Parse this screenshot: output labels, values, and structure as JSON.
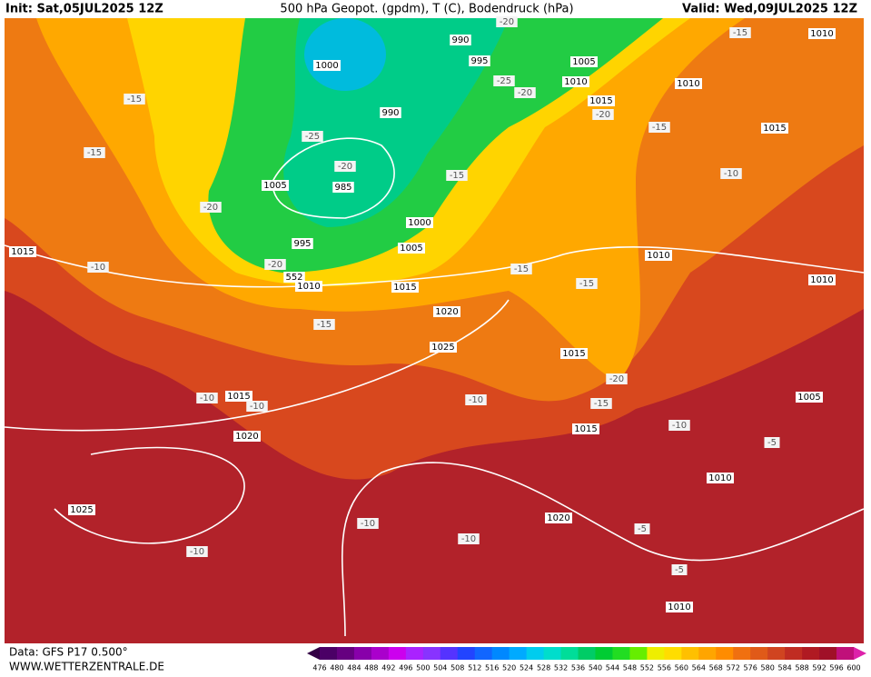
{
  "header": {
    "init": "Init: Sat,05JUL2025 12Z",
    "title": "500 hPa Geopot. (gpdm), T (C), Bodendruck (hPa)",
    "valid": "Valid: Wed,09JUL2025 12Z"
  },
  "footer": {
    "source": "Data: GFS P17 0.500°",
    "site": "WWW.WETTERZENTRALE.DE"
  },
  "colorbar": {
    "labels": [
      "476",
      "480",
      "484",
      "488",
      "492",
      "496",
      "500",
      "504",
      "508",
      "512",
      "516",
      "520",
      "524",
      "528",
      "532",
      "536",
      "540",
      "544",
      "548",
      "552",
      "556",
      "560",
      "564",
      "568",
      "572",
      "576",
      "580",
      "584",
      "588",
      "592",
      "596",
      "600"
    ],
    "colors": [
      "#4b0066",
      "#660080",
      "#8800aa",
      "#aa00cc",
      "#cc00ee",
      "#aa22ff",
      "#8833ff",
      "#5533ff",
      "#2244ff",
      "#1166ff",
      "#0088ff",
      "#00aaff",
      "#00ccee",
      "#00ddcc",
      "#00dd99",
      "#00cc66",
      "#00cc33",
      "#22dd22",
      "#66ee00",
      "#eeee00",
      "#ffdd00",
      "#ffc000",
      "#ffa500",
      "#ff8c00",
      "#f07010",
      "#e05a18",
      "#d04420",
      "#c02c22",
      "#b01a22",
      "#a01028",
      "#c0107a"
    ]
  },
  "map": {
    "pressure_labels": [
      "1010",
      "1000",
      "990",
      "995",
      "1005",
      "1010",
      "1010",
      "1015",
      "990",
      "1015",
      "1005",
      "985",
      "1000",
      "995",
      "1005",
      "1015",
      "1010",
      "1010",
      "1015",
      "1010",
      "1020",
      "1025",
      "1015",
      "1015",
      "1005",
      "1020",
      "1015",
      "1010",
      "1025",
      "1020",
      "1010",
      "552"
    ],
    "temperature_labels": [
      "-15",
      "-15",
      "-25",
      "-20",
      "-20",
      "-20",
      "-25",
      "-20",
      "-20",
      "-15",
      "-15",
      "-10",
      "-15",
      "-20",
      "-10",
      "-15",
      "-15",
      "-15",
      "-20",
      "-15",
      "-10",
      "-10",
      "-10",
      "-10",
      "-5",
      "-10",
      "-10",
      "-5",
      "-10",
      "-5"
    ]
  }
}
